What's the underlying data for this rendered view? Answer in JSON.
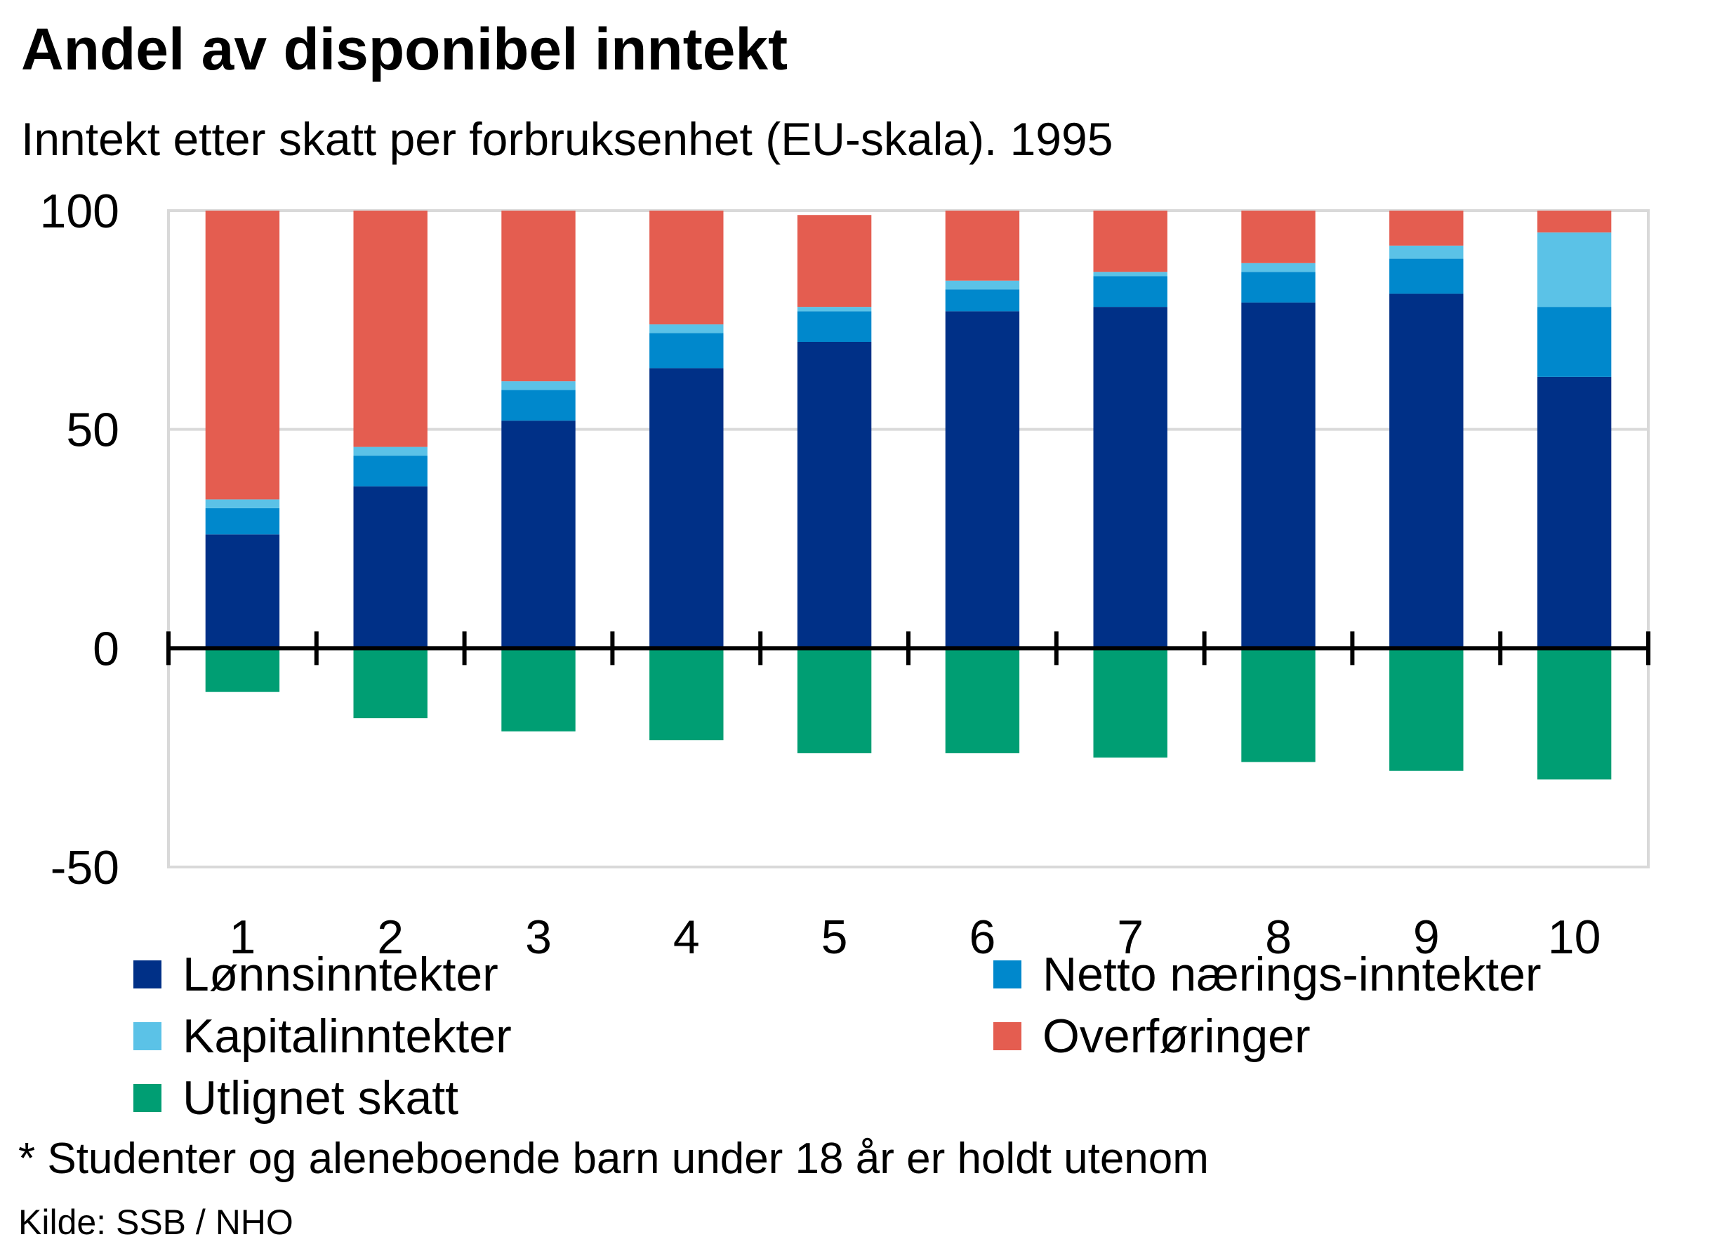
{
  "title": "Andel av disponibel inntekt",
  "subtitle": "Inntekt etter skatt per forbruksenhet (EU-skala). 1995",
  "note": "* Studenter og aleneboende barn under 18 år er holdt utenom",
  "source": "Kilde: SSB / NHO",
  "chart_data": {
    "type": "bar",
    "stacked": true,
    "title": "Andel av disponibel inntekt",
    "subtitle": "Inntekt etter skatt per forbruksenhet (EU-skala). 1995",
    "xlabel": "",
    "ylabel": "",
    "ylim": [
      -50,
      100
    ],
    "yticks": [
      100,
      50,
      0,
      -50
    ],
    "grid": true,
    "legend_position": "bottom",
    "categories": [
      "1",
      "2",
      "3",
      "4",
      "5",
      "6",
      "7",
      "8",
      "9",
      "10"
    ],
    "series": [
      {
        "name": "Lønnsinntekter",
        "color": "#003087",
        "values": [
          26,
          37,
          52,
          64,
          70,
          77,
          78,
          79,
          81,
          62
        ]
      },
      {
        "name": "Netto nærings-inntekter",
        "color": "#0088cc",
        "values": [
          6,
          7,
          7,
          8,
          7,
          5,
          7,
          7,
          8,
          16
        ]
      },
      {
        "name": "Kapitalinntekter",
        "color": "#5bc2e7",
        "values": [
          2,
          2,
          2,
          2,
          1,
          2,
          1,
          2,
          3,
          17
        ]
      },
      {
        "name": "Overføringer",
        "color": "#e45d50",
        "values": [
          66,
          54,
          39,
          26,
          21,
          16,
          14,
          12,
          8,
          5
        ]
      },
      {
        "name": "Utlignet skatt",
        "color": "#009e73",
        "values": [
          -10,
          -16,
          -19,
          -21,
          -24,
          -24,
          -25,
          -26,
          -28,
          -30
        ]
      }
    ]
  }
}
